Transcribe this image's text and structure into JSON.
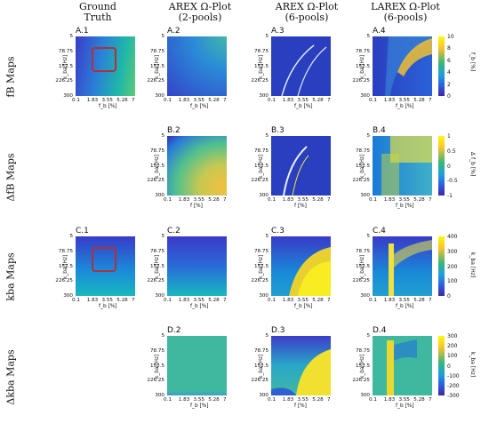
{
  "columns": [
    {
      "line1": "Ground",
      "line2": "Truth"
    },
    {
      "line1": "AREX Ω-Plot",
      "line2": "(2-pools)"
    },
    {
      "line1": "AREX Ω-Plot",
      "line2": "(6-pools)"
    },
    {
      "line1": "LAREX Ω-Plot",
      "line2": "(6-pools)"
    }
  ],
  "rows": [
    {
      "label": "fB Maps"
    },
    {
      "label": "ΔfB Maps"
    },
    {
      "label": "kba Maps"
    },
    {
      "label": "Δkba Maps"
    }
  ],
  "panel_tags": [
    [
      "A.1",
      "A.2",
      "A.3",
      "A.4"
    ],
    [
      "",
      "B.2",
      "B.3",
      "B.4"
    ],
    [
      "C.1",
      "C.2",
      "C.3",
      "C.4"
    ],
    [
      "",
      "D.2",
      "D.3",
      "D.4"
    ]
  ],
  "axis": {
    "y_ticks": [
      "5",
      "78.75",
      "152.5",
      "226.25",
      "300"
    ],
    "x_ticks": [
      "0.1",
      "1.83",
      "3.55",
      "5.28",
      "7"
    ],
    "y_label": "k_ba [Hz]",
    "x_label_fb": "f_b [%]",
    "x_label_f": "f [%]"
  },
  "colorbars": [
    {
      "ticks": [
        "10",
        "8",
        "6",
        "4",
        "2",
        "0"
      ],
      "label": "f_b [%]"
    },
    {
      "ticks": [
        "1",
        "0.5",
        "0",
        "-0.5",
        "-1"
      ],
      "label": "Δ f_b [%]"
    },
    {
      "ticks": [
        "400",
        "300",
        "200",
        "100",
        "0"
      ],
      "label": "k_ba [Hz]"
    },
    {
      "ticks": [
        "300",
        "200",
        "100",
        "0",
        "-100",
        "-200",
        "-300"
      ],
      "label": "k_ba [Hz]"
    }
  ],
  "colors": {
    "roi": "#b0303a",
    "colormap": "parula"
  }
}
